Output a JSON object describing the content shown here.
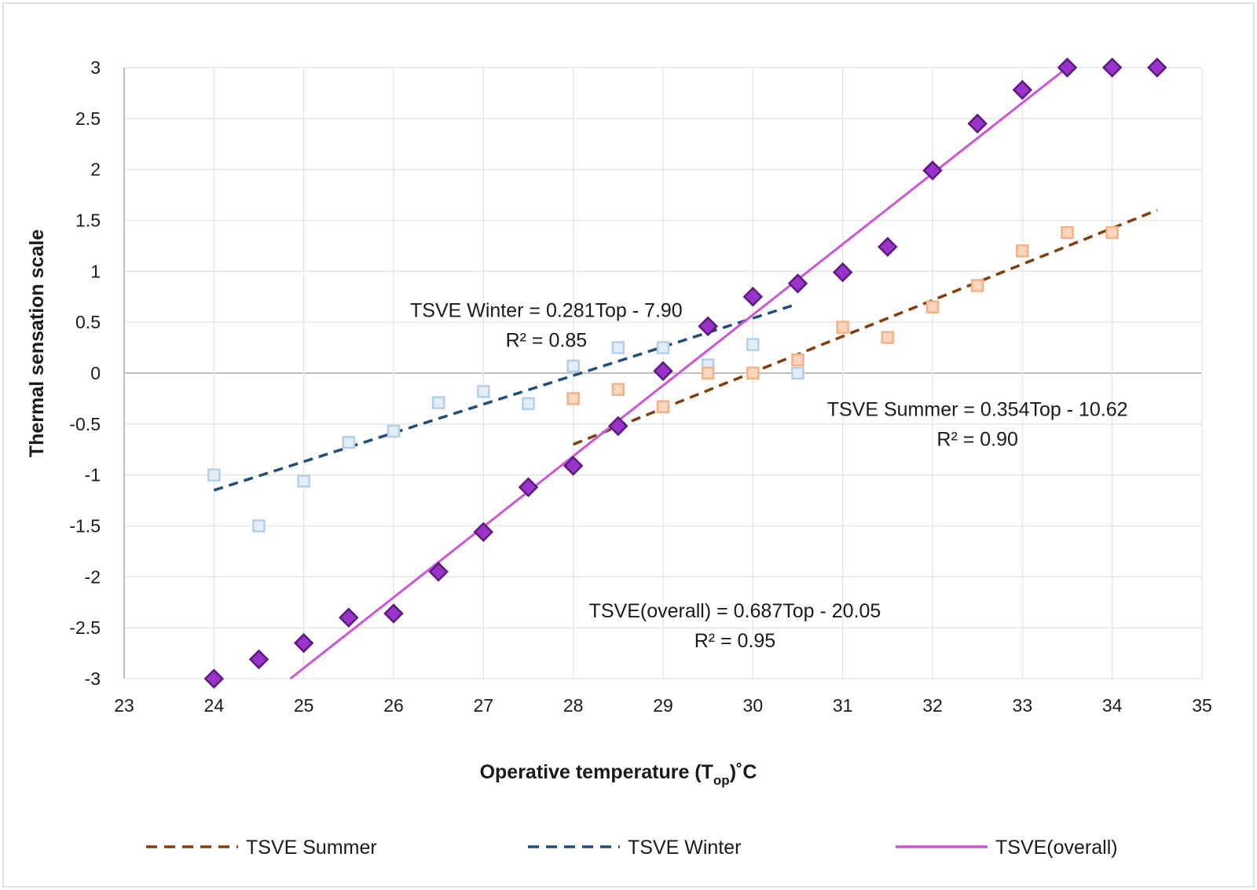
{
  "chart_data": {
    "type": "scatter",
    "xlabel": "Operative temperature (T",
    "xlabel_sub": "op",
    "xlabel_unit": ")˚C",
    "ylabel": "Thermal sensation scale",
    "xlim": [
      23,
      35
    ],
    "ylim": [
      -3,
      3
    ],
    "x_ticks": [
      "23",
      "24",
      "25",
      "26",
      "27",
      "28",
      "29",
      "30",
      "31",
      "32",
      "33",
      "34",
      "35"
    ],
    "y_ticks": [
      "3",
      "2.5",
      "2",
      "1.5",
      "1",
      "0.5",
      "0",
      "-0.5",
      "-1",
      "-1.5",
      "-2",
      "-2.5",
      "-3"
    ],
    "grid": true,
    "legend_position": "bottom",
    "series": [
      {
        "name": "TSVE Summer",
        "marker": "square",
        "marker_fill": "#fbd5bd",
        "marker_stroke": "#f4b183",
        "points": [
          [
            28,
            -0.25
          ],
          [
            28.5,
            -0.16
          ],
          [
            29,
            -0.33
          ],
          [
            29.5,
            0.0
          ],
          [
            30,
            0.0
          ],
          [
            30.5,
            0.13
          ],
          [
            31,
            0.45
          ],
          [
            31.5,
            0.35
          ],
          [
            32,
            0.65
          ],
          [
            32.5,
            0.86
          ],
          [
            33,
            1.2
          ],
          [
            33.5,
            1.38
          ],
          [
            34,
            1.38
          ]
        ]
      },
      {
        "name": "TSVE Winter",
        "marker": "square",
        "marker_fill": "#e3eef8",
        "marker_stroke": "#b4cfe8",
        "points": [
          [
            24,
            -1.0
          ],
          [
            24.5,
            -1.5
          ],
          [
            25,
            -1.06
          ],
          [
            25.5,
            -0.68
          ],
          [
            26,
            -0.57
          ],
          [
            26.5,
            -0.29
          ],
          [
            27,
            -0.18
          ],
          [
            27.5,
            -0.3
          ],
          [
            28,
            0.07
          ],
          [
            28.5,
            0.25
          ],
          [
            29,
            0.25
          ],
          [
            29.5,
            0.08
          ],
          [
            30,
            0.28
          ],
          [
            30.5,
            0.0
          ]
        ]
      },
      {
        "name": "TSVE(overall)",
        "marker": "diamond",
        "marker_fill": "#9933cc",
        "marker_stroke": "#5c1a7a",
        "points": [
          [
            24,
            -3.0
          ],
          [
            24.5,
            -2.81
          ],
          [
            25,
            -2.65
          ],
          [
            25.5,
            -2.4
          ],
          [
            26,
            -2.36
          ],
          [
            26.5,
            -1.95
          ],
          [
            27,
            -1.56
          ],
          [
            27.5,
            -1.12
          ],
          [
            28,
            -0.91
          ],
          [
            28.5,
            -0.52
          ],
          [
            29,
            0.02
          ],
          [
            29.5,
            0.46
          ],
          [
            30,
            0.75
          ],
          [
            30.5,
            0.88
          ],
          [
            31,
            0.99
          ],
          [
            31.5,
            1.24
          ],
          [
            32,
            1.99
          ],
          [
            32.5,
            2.45
          ],
          [
            33,
            2.78
          ],
          [
            33.5,
            3.0
          ],
          [
            34,
            3.0
          ],
          [
            34.5,
            3.0
          ]
        ]
      }
    ],
    "trendlines": [
      {
        "name": "TSVE Summer",
        "color": "#843c0c",
        "dash": "dashed",
        "x_start": 28,
        "x_end": 34.5,
        "y_start": -0.7,
        "y_end": 1.6
      },
      {
        "name": "TSVE Winter",
        "color": "#1f4e79",
        "dash": "dashed",
        "x_start": 24,
        "x_end": 30.5,
        "y_start": -1.15,
        "y_end": 0.68
      },
      {
        "name": "TSVE(overall)",
        "color": "#cc55d6",
        "dash": "solid",
        "x_start": 24.85,
        "x_end": 33.5,
        "y_start": -3.0,
        "y_end": 3.0
      }
    ],
    "annotations": [
      {
        "line1": "TSVE Winter = 0.281Top - 7.90",
        "line2": "R² = 0.85",
        "x": 27.7,
        "y": 0.55
      },
      {
        "line1": "TSVE Summer = 0.354Top - 10.62",
        "line2": "R² = 0.90",
        "x": 32.5,
        "y": -0.42
      },
      {
        "line1": "TSVE(overall) = 0.687Top - 20.05",
        "line2": "R² = 0.95",
        "x": 29.8,
        "y": -2.4
      }
    ],
    "legend": [
      {
        "label": "TSVE Summer",
        "color": "#843c0c",
        "dash": "dashed"
      },
      {
        "label": "TSVE Winter",
        "color": "#1f4e79",
        "dash": "dashed"
      },
      {
        "label": "TSVE(overall)",
        "color": "#cc55d6",
        "dash": "solid"
      }
    ]
  }
}
